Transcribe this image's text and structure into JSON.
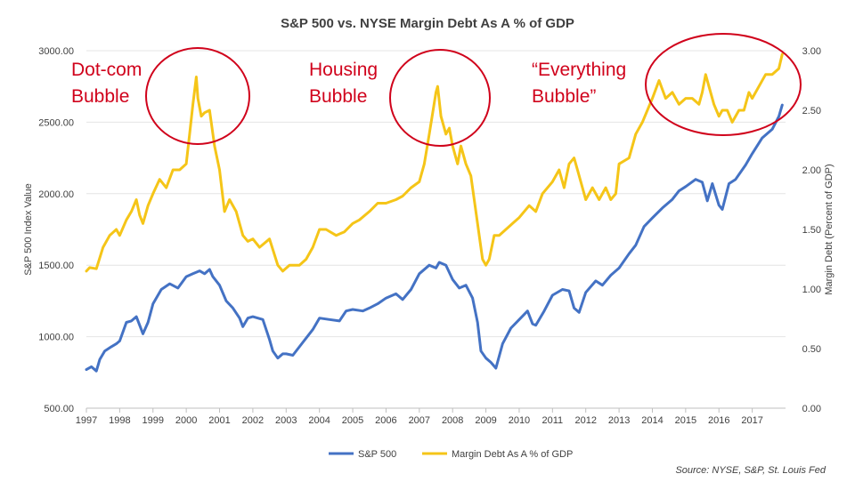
{
  "chart_data": {
    "type": "line",
    "title": "S&P 500 vs. NYSE Margin Debt As A % of GDP",
    "ylabel": "S&P 500 Index Value",
    "y2label": "Margin Debt (Percent of GDP)",
    "ylim": [
      500,
      3000
    ],
    "y2lim": [
      0,
      3
    ],
    "xlim": [
      1997,
      2018
    ],
    "y_ticks": [
      "500.00",
      "1000.00",
      "1500.00",
      "2000.00",
      "2500.00",
      "3000.00"
    ],
    "y2_ticks": [
      "0.00",
      "0.50",
      "1.00",
      "1.50",
      "2.00",
      "2.50",
      "3.00"
    ],
    "x_ticks": [
      "1997",
      "1998",
      "1999",
      "2000",
      "2001",
      "2002",
      "2003",
      "2004",
      "2005",
      "2006",
      "2007",
      "2008",
      "2009",
      "2010",
      "2011",
      "2012",
      "2013",
      "2014",
      "2015",
      "2016",
      "2017"
    ],
    "legend_position": "bottom",
    "colors": {
      "sp500": "#4472c4",
      "margin": "#f5c518",
      "annotation": "#d0021b"
    },
    "series": [
      {
        "name": "S&P 500",
        "axis": "left",
        "x": [
          1997.0,
          1997.15,
          1997.3,
          1997.4,
          1997.55,
          1997.75,
          1997.9,
          1998.0,
          1998.2,
          1998.35,
          1998.5,
          1998.6,
          1998.7,
          1998.85,
          1999.0,
          1999.25,
          1999.5,
          1999.75,
          2000.0,
          2000.2,
          2000.4,
          2000.55,
          2000.7,
          2000.8,
          2001.0,
          2001.2,
          2001.4,
          2001.6,
          2001.7,
          2001.85,
          2002.0,
          2002.3,
          2002.5,
          2002.6,
          2002.75,
          2002.9,
          2003.0,
          2003.2,
          2003.5,
          2003.8,
          2004.0,
          2004.3,
          2004.6,
          2004.8,
          2005.0,
          2005.3,
          2005.5,
          2005.75,
          2006.0,
          2006.3,
          2006.5,
          2006.75,
          2007.0,
          2007.3,
          2007.5,
          2007.6,
          2007.8,
          2008.0,
          2008.2,
          2008.4,
          2008.6,
          2008.75,
          2008.85,
          2009.0,
          2009.15,
          2009.3,
          2009.5,
          2009.75,
          2010.0,
          2010.25,
          2010.4,
          2010.5,
          2010.75,
          2011.0,
          2011.3,
          2011.5,
          2011.65,
          2011.8,
          2012.0,
          2012.3,
          2012.5,
          2012.75,
          2013.0,
          2013.3,
          2013.5,
          2013.75,
          2014.0,
          2014.3,
          2014.6,
          2014.8,
          2015.0,
          2015.3,
          2015.5,
          2015.65,
          2015.8,
          2016.0,
          2016.1,
          2016.3,
          2016.5,
          2016.8,
          2017.0,
          2017.3,
          2017.6,
          2017.8,
          2017.9
        ],
        "values": [
          770,
          790,
          760,
          840,
          900,
          930,
          950,
          970,
          1100,
          1110,
          1140,
          1080,
          1020,
          1100,
          1230,
          1330,
          1370,
          1340,
          1420,
          1440,
          1460,
          1440,
          1470,
          1420,
          1360,
          1250,
          1200,
          1130,
          1070,
          1130,
          1140,
          1120,
          980,
          900,
          850,
          880,
          880,
          870,
          960,
          1050,
          1130,
          1120,
          1110,
          1180,
          1190,
          1180,
          1200,
          1230,
          1270,
          1300,
          1260,
          1330,
          1440,
          1500,
          1480,
          1520,
          1500,
          1400,
          1340,
          1360,
          1270,
          1100,
          900,
          850,
          820,
          780,
          950,
          1060,
          1120,
          1180,
          1090,
          1080,
          1180,
          1290,
          1330,
          1320,
          1200,
          1170,
          1310,
          1390,
          1360,
          1430,
          1480,
          1580,
          1640,
          1770,
          1830,
          1900,
          1960,
          2020,
          2050,
          2100,
          2080,
          1950,
          2070,
          1920,
          1890,
          2070,
          2100,
          2200,
          2280,
          2390,
          2450,
          2540,
          2620
        ],
        "first_label": "1997",
        "last_label": "2017"
      },
      {
        "name": "Margin Debt As A % of GDP",
        "axis": "right",
        "x": [
          1997.0,
          1997.1,
          1997.3,
          1997.5,
          1997.7,
          1997.9,
          1998.0,
          1998.2,
          1998.35,
          1998.5,
          1998.6,
          1998.7,
          1998.85,
          1999.0,
          1999.2,
          1999.4,
          1999.6,
          1999.8,
          2000.0,
          2000.1,
          2000.2,
          2000.3,
          2000.35,
          2000.45,
          2000.55,
          2000.7,
          2000.85,
          2001.0,
          2001.15,
          2001.3,
          2001.5,
          2001.7,
          2001.85,
          2002.0,
          2002.2,
          2002.5,
          2002.75,
          2002.9,
          2003.1,
          2003.4,
          2003.6,
          2003.8,
          2004.0,
          2004.2,
          2004.5,
          2004.75,
          2005.0,
          2005.2,
          2005.5,
          2005.75,
          2006.0,
          2006.3,
          2006.5,
          2006.75,
          2007.0,
          2007.15,
          2007.3,
          2007.5,
          2007.55,
          2007.65,
          2007.8,
          2007.9,
          2008.0,
          2008.15,
          2008.25,
          2008.4,
          2008.55,
          2008.75,
          2008.9,
          2009.0,
          2009.1,
          2009.25,
          2009.4,
          2009.6,
          2009.8,
          2010.0,
          2010.3,
          2010.5,
          2010.7,
          2011.0,
          2011.2,
          2011.35,
          2011.5,
          2011.65,
          2011.75,
          2011.9,
          2012.0,
          2012.2,
          2012.4,
          2012.6,
          2012.75,
          2012.9,
          2013.0,
          2013.3,
          2013.5,
          2013.7,
          2014.0,
          2014.2,
          2014.4,
          2014.6,
          2014.8,
          2015.0,
          2015.2,
          2015.4,
          2015.5,
          2015.6,
          2015.7,
          2015.85,
          2016.0,
          2016.1,
          2016.25,
          2016.4,
          2016.6,
          2016.75,
          2016.9,
          2017.0,
          2017.2,
          2017.4,
          2017.6,
          2017.8,
          2017.9
        ],
        "values": [
          1.15,
          1.18,
          1.17,
          1.35,
          1.45,
          1.5,
          1.45,
          1.58,
          1.65,
          1.75,
          1.62,
          1.55,
          1.7,
          1.8,
          1.92,
          1.85,
          2.0,
          2.0,
          2.05,
          2.3,
          2.55,
          2.78,
          2.6,
          2.45,
          2.48,
          2.5,
          2.2,
          2.0,
          1.65,
          1.75,
          1.65,
          1.45,
          1.4,
          1.42,
          1.35,
          1.42,
          1.2,
          1.15,
          1.2,
          1.2,
          1.25,
          1.35,
          1.5,
          1.5,
          1.45,
          1.48,
          1.55,
          1.58,
          1.65,
          1.72,
          1.72,
          1.75,
          1.78,
          1.85,
          1.9,
          2.05,
          2.3,
          2.65,
          2.7,
          2.45,
          2.3,
          2.35,
          2.2,
          2.05,
          2.2,
          2.05,
          1.95,
          1.55,
          1.25,
          1.2,
          1.25,
          1.45,
          1.45,
          1.5,
          1.55,
          1.6,
          1.7,
          1.65,
          1.8,
          1.9,
          2.0,
          1.85,
          2.05,
          2.1,
          2.0,
          1.85,
          1.75,
          1.85,
          1.75,
          1.85,
          1.75,
          1.8,
          2.05,
          2.1,
          2.3,
          2.4,
          2.6,
          2.75,
          2.6,
          2.65,
          2.55,
          2.6,
          2.6,
          2.55,
          2.65,
          2.8,
          2.7,
          2.55,
          2.45,
          2.5,
          2.5,
          2.4,
          2.5,
          2.5,
          2.65,
          2.6,
          2.7,
          2.8,
          2.8,
          2.85,
          2.97
        ],
        "first_label": "1997",
        "last_label": "2017"
      }
    ],
    "annotations": [
      "Dot-com\nBubble",
      "Housing\nBubble",
      "“Everything\nBubble”"
    ],
    "source": "Source: NYSE, S&P, St. Louis Fed"
  }
}
